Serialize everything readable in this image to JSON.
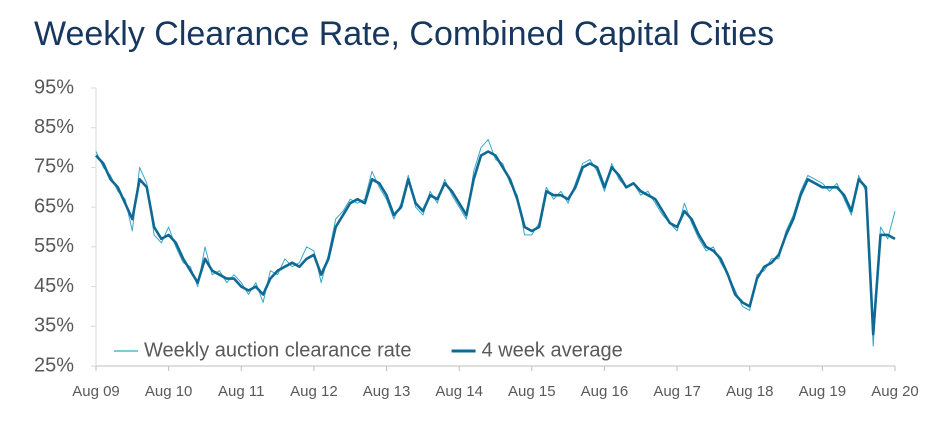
{
  "chart_data": {
    "type": "line",
    "title": "Weekly Clearance Rate, Combined Capital Cities",
    "x": [
      2009.6,
      2009.7,
      2009.8,
      2009.9,
      2010.0,
      2010.1,
      2010.2,
      2010.3,
      2010.4,
      2010.5,
      2010.6,
      2010.7,
      2010.8,
      2010.9,
      2011.0,
      2011.1,
      2011.2,
      2011.3,
      2011.4,
      2011.5,
      2011.6,
      2011.7,
      2011.8,
      2011.9,
      2012.0,
      2012.1,
      2012.2,
      2012.3,
      2012.4,
      2012.5,
      2012.6,
      2012.7,
      2012.8,
      2012.9,
      2013.0,
      2013.1,
      2013.2,
      2013.3,
      2013.4,
      2013.5,
      2013.6,
      2013.7,
      2013.8,
      2013.9,
      2014.0,
      2014.1,
      2014.2,
      2014.3,
      2014.4,
      2014.5,
      2014.6,
      2014.7,
      2014.8,
      2014.9,
      2015.0,
      2015.1,
      2015.2,
      2015.3,
      2015.4,
      2015.5,
      2015.6,
      2015.7,
      2015.8,
      2015.9,
      2016.0,
      2016.1,
      2016.2,
      2016.3,
      2016.4,
      2016.5,
      2016.6,
      2016.7,
      2016.8,
      2016.9,
      2017.0,
      2017.1,
      2017.2,
      2017.3,
      2017.4,
      2017.5,
      2017.6,
      2017.7,
      2017.8,
      2017.9,
      2018.0,
      2018.1,
      2018.2,
      2018.3,
      2018.4,
      2018.5,
      2018.6,
      2018.7,
      2018.8,
      2018.9,
      2019.0,
      2019.1,
      2019.2,
      2019.3,
      2019.4,
      2019.5,
      2019.6,
      2019.7,
      2019.8,
      2019.9,
      2020.0,
      2020.1,
      2020.2,
      2020.3,
      2020.4,
      2020.5,
      2020.6
    ],
    "series": [
      {
        "name": "Weekly auction clearance rate",
        "color": "#3aa6c8",
        "values": [
          79,
          75,
          73,
          69,
          67,
          59,
          75,
          71,
          58,
          56,
          60,
          55,
          51,
          50,
          45,
          55,
          48,
          49,
          46,
          48,
          46,
          43,
          46,
          41,
          49,
          48,
          52,
          50,
          51,
          55,
          54,
          46,
          53,
          62,
          64,
          67,
          66,
          67,
          74,
          70,
          67,
          62,
          66,
          73,
          65,
          63,
          69,
          66,
          72,
          68,
          65,
          62,
          74,
          80,
          82,
          77,
          76,
          71,
          68,
          58,
          58,
          61,
          70,
          67,
          69,
          66,
          71,
          76,
          77,
          74,
          69,
          76,
          72,
          70,
          71,
          68,
          69,
          66,
          63,
          61,
          59,
          66,
          61,
          57,
          54,
          55,
          51,
          48,
          44,
          40,
          39,
          48,
          49,
          52,
          52,
          59,
          63,
          69,
          73,
          72,
          71,
          69,
          71,
          67,
          63,
          73,
          69,
          30,
          60,
          57,
          64
        ]
      },
      {
        "name": "4 week average",
        "color": "#0e6a94",
        "values": [
          78,
          76,
          72,
          70,
          66,
          62,
          72,
          70,
          60,
          57,
          58,
          56,
          52,
          49,
          46,
          52,
          49,
          48,
          47,
          47,
          45,
          44,
          45,
          43,
          47,
          49,
          50,
          51,
          50,
          52,
          53,
          48,
          52,
          60,
          63,
          66,
          67,
          66,
          72,
          71,
          68,
          63,
          65,
          72,
          66,
          64,
          68,
          67,
          71,
          69,
          66,
          63,
          72,
          78,
          79,
          78,
          75,
          72,
          67,
          60,
          59,
          60,
          69,
          68,
          68,
          67,
          70,
          75,
          76,
          75,
          70,
          75,
          73,
          70,
          71,
          69,
          68,
          67,
          64,
          61,
          60,
          64,
          62,
          58,
          55,
          54,
          52,
          48,
          43,
          41,
          40,
          47,
          50,
          51,
          53,
          58,
          62,
          68,
          72,
          71,
          70,
          70,
          70,
          68,
          64,
          72,
          70,
          33,
          58,
          58,
          57
        ]
      }
    ],
    "xlim": [
      2009.6,
      2020.6
    ],
    "xticks": [
      {
        "value": 2009.6,
        "label": "Aug 09"
      },
      {
        "value": 2010.6,
        "label": "Aug 10"
      },
      {
        "value": 2011.6,
        "label": "Aug 11"
      },
      {
        "value": 2012.6,
        "label": "Aug 12"
      },
      {
        "value": 2013.6,
        "label": "Aug 13"
      },
      {
        "value": 2014.6,
        "label": "Aug 14"
      },
      {
        "value": 2015.6,
        "label": "Aug 15"
      },
      {
        "value": 2016.6,
        "label": "Aug 16"
      },
      {
        "value": 2017.6,
        "label": "Aug 17"
      },
      {
        "value": 2018.6,
        "label": "Aug 18"
      },
      {
        "value": 2019.6,
        "label": "Aug 19"
      },
      {
        "value": 2020.6,
        "label": "Aug 20"
      }
    ],
    "ylim": [
      25,
      95
    ],
    "yticks": [
      {
        "value": 25,
        "label": "25%"
      },
      {
        "value": 35,
        "label": "35%"
      },
      {
        "value": 45,
        "label": "45%"
      },
      {
        "value": 55,
        "label": "55%"
      },
      {
        "value": 65,
        "label": "65%"
      },
      {
        "value": 75,
        "label": "75%"
      },
      {
        "value": 85,
        "label": "85%"
      },
      {
        "value": 95,
        "label": "95%"
      }
    ],
    "legend": "lower left"
  }
}
